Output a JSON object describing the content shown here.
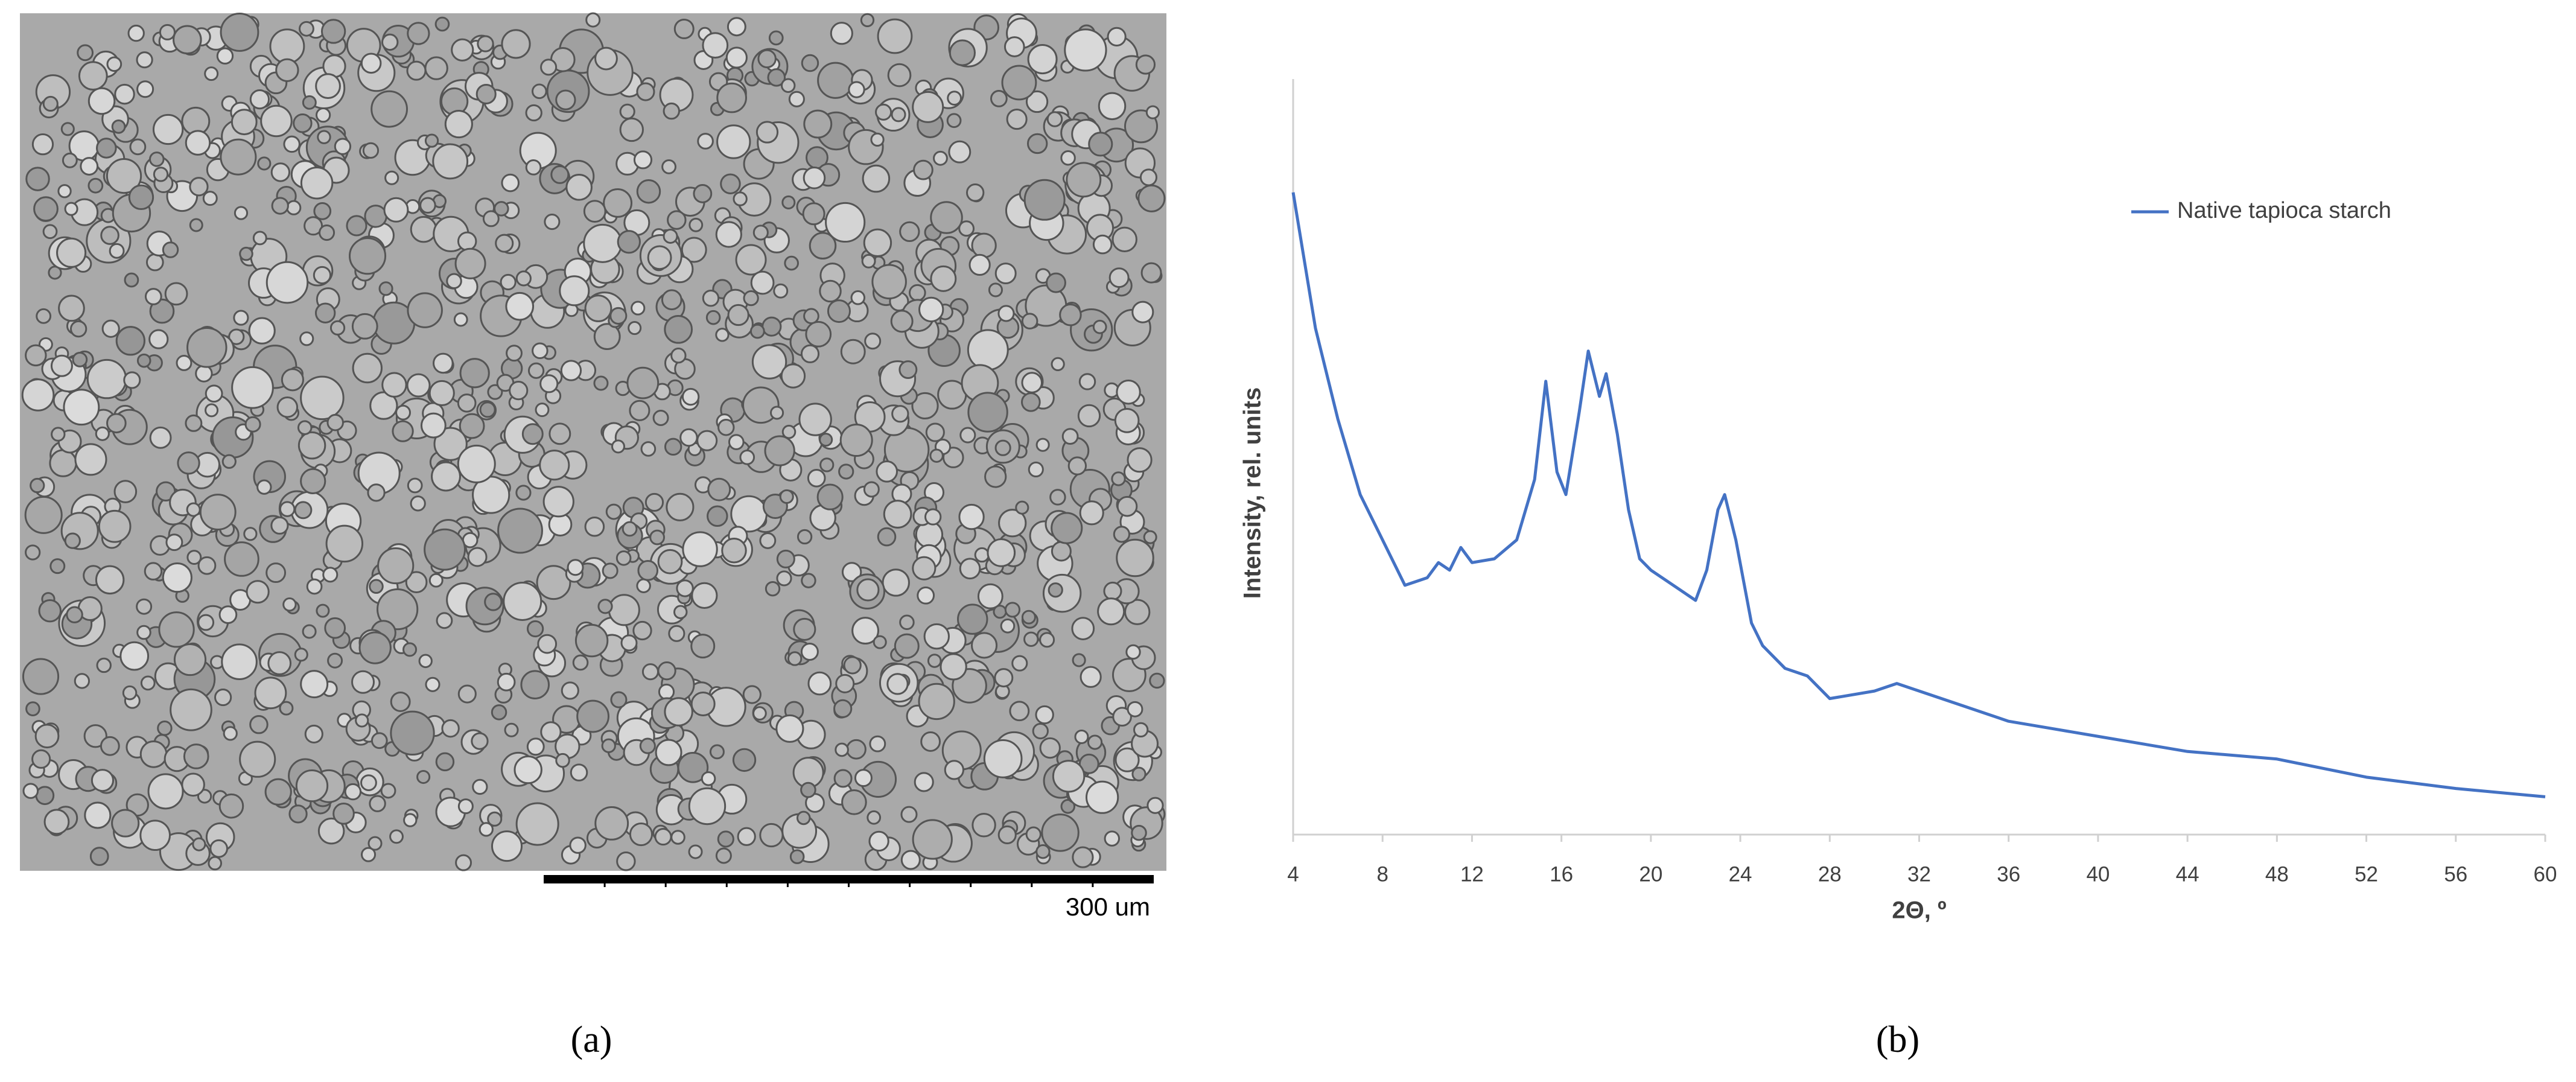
{
  "figure": {
    "panel_a_label": "(a)",
    "panel_b_label": "(b)",
    "scale_bar_label": "300 um"
  },
  "chart_data": {
    "type": "line",
    "xlabel": "2Θ, º",
    "ylabel": "Intensity, rel. units",
    "x": [
      4,
      5,
      6,
      7,
      8,
      9,
      10,
      10.5,
      11,
      11.5,
      12,
      13,
      14,
      14.8,
      15.3,
      15.8,
      16.2,
      16.8,
      17.2,
      17.7,
      18,
      18.5,
      19,
      19.5,
      20,
      21,
      22,
      22.5,
      23,
      23.3,
      23.8,
      24.5,
      25,
      26,
      27,
      28,
      30,
      31,
      32,
      33,
      34,
      36,
      38,
      40,
      44,
      48,
      52,
      56,
      60
    ],
    "series": [
      {
        "name": "Native tapioca starch",
        "color": "#4472c4",
        "values": [
          85,
          67,
          55,
          45,
          39,
          33,
          34,
          36,
          35,
          38,
          36,
          36.5,
          39,
          47,
          60,
          48,
          45,
          56,
          64,
          58,
          61,
          53,
          43,
          36.5,
          35,
          33,
          31,
          35,
          43,
          45,
          39,
          28,
          25,
          22,
          21,
          18,
          19,
          20,
          19,
          18,
          17,
          15,
          14,
          13,
          11,
          10,
          7.6,
          6.1,
          5
        ]
      }
    ],
    "xlim": [
      4,
      60
    ],
    "xticks": [
      4,
      8,
      12,
      16,
      20,
      24,
      28,
      32,
      36,
      40,
      44,
      48,
      52,
      56,
      60
    ],
    "ylim": [
      0,
      100
    ],
    "legend": "upper right"
  }
}
